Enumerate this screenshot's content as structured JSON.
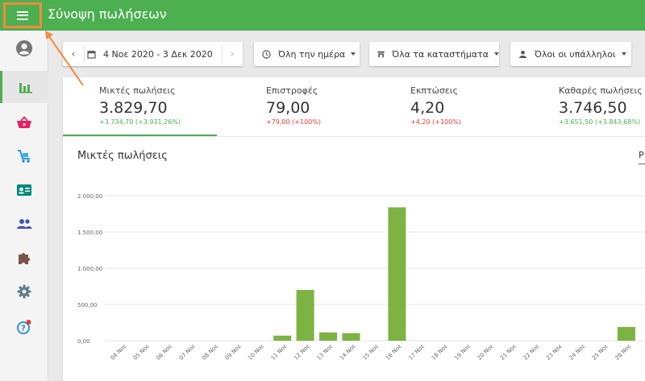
{
  "header": {
    "title": "Σύνοψη πωλήσεων",
    "menu_icon": "hamburger-menu-icon"
  },
  "colors": {
    "brand": "#4caf50",
    "highlight": "#f58a3c",
    "bar": "#7cb342",
    "negative": "#e53935"
  },
  "sidebar": {
    "items": [
      {
        "name": "account",
        "icon": "account-circle-icon",
        "active": false
      },
      {
        "name": "reports",
        "icon": "bar-chart-icon",
        "active": true
      },
      {
        "name": "items",
        "icon": "basket-icon",
        "active": false
      },
      {
        "name": "inventory",
        "icon": "cart-icon",
        "active": false
      },
      {
        "name": "customers",
        "icon": "id-card-icon",
        "active": false
      },
      {
        "name": "employees",
        "icon": "people-icon",
        "active": false
      },
      {
        "name": "integrations",
        "icon": "puzzle-icon",
        "active": false
      },
      {
        "name": "settings",
        "icon": "gear-icon",
        "active": false
      },
      {
        "name": "help",
        "icon": "help-icon",
        "active": false
      }
    ]
  },
  "filters": {
    "date_range": "4 Νοε 2020 - 3 Δεκ 2020",
    "time": "Όλη την ημέρα",
    "stores": "Όλα τα καταστήματα",
    "employees": "Όλοι οι υπάλληλοι"
  },
  "stats": [
    {
      "name": "Μικτές πωλήσεις",
      "value": "3.829,70",
      "diff": "+3.734,70 (+3.931,26%)"
    },
    {
      "name": "Επιστροφές",
      "value": "79,00",
      "diff": "+79,00 (+100%)"
    },
    {
      "name": "Εκπτώσεις",
      "value": "4,20",
      "diff": "+4,20 (+100%)"
    },
    {
      "name": "Καθαρές πωλήσεις",
      "value": "3.746,50",
      "diff": "+3.651,50 (+3.843,68%)"
    }
  ],
  "chart": {
    "title": "Μικτές πωλήσεις",
    "right_label": "Ρ"
  },
  "chart_data": {
    "type": "bar",
    "title": "Μικτές πωλήσεις",
    "xlabel": "",
    "ylabel": "",
    "ylim": [
      0,
      2000
    ],
    "yticks": [
      "0,00",
      "500,00",
      "1.000,00",
      "1.500,00",
      "2.000,00"
    ],
    "categories": [
      "04 Νοε",
      "05 Νοε",
      "06 Νοε",
      "07 Νοε",
      "08 Νοε",
      "09 Νοε",
      "10 Νοε",
      "11 Νοε",
      "12 Νοε",
      "13 Νοε",
      "14 Νοε",
      "15 Νοε",
      "16 Νοε",
      "17 Νοε",
      "18 Νοε",
      "19 Νοε",
      "20 Νοε",
      "21 Νοε",
      "22 Νοε",
      "23 Νοε",
      "24 Νοε",
      "25 Νοε",
      "26 Νοε"
    ],
    "values": [
      0,
      0,
      0,
      0,
      0,
      0,
      0,
      70,
      700,
      115,
      105,
      0,
      1840,
      0,
      0,
      0,
      0,
      0,
      0,
      0,
      0,
      0,
      190
    ]
  }
}
